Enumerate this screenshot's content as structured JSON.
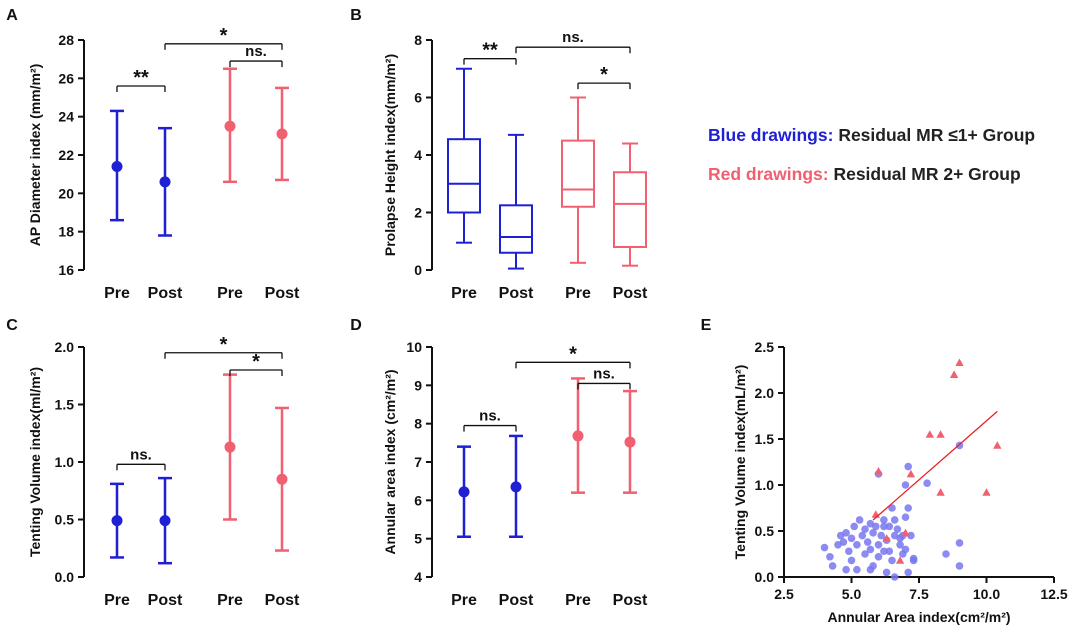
{
  "figure": {
    "colors": {
      "blue": "#1f1fd4",
      "red": "#f06070",
      "black": "#111111",
      "scatter_blue": "#7777ee"
    }
  },
  "legend": {
    "blue_label": "Blue drawings:",
    "blue_text": "Residual MR ≤1+ Group",
    "red_label": "Red drawings:",
    "red_text": "Residual MR 2+ Group"
  },
  "chart_data": [
    {
      "panel": "A",
      "type": "errorbar",
      "ylabel": "AP Diameter index (mm/m²)",
      "ylim": [
        16,
        28
      ],
      "yticks": [
        16,
        18,
        20,
        22,
        24,
        26,
        28
      ],
      "categories": [
        "Pre",
        "Post",
        "Pre",
        "Post"
      ],
      "groups": [
        "blue",
        "blue",
        "red",
        "red"
      ],
      "points": [
        {
          "mean": 21.4,
          "low": 18.6,
          "high": 24.3
        },
        {
          "mean": 20.6,
          "low": 17.8,
          "high": 23.4
        },
        {
          "mean": 23.5,
          "low": 20.6,
          "high": 26.5
        },
        {
          "mean": 23.1,
          "low": 20.7,
          "high": 25.5
        }
      ],
      "brackets": [
        {
          "from": 0,
          "to": 1,
          "label": "**",
          "y": 25.6
        },
        {
          "from": 1,
          "to": 3,
          "label": "*",
          "y": 27.8
        },
        {
          "from": 2,
          "to": 3,
          "label": "ns.",
          "y": 26.9
        }
      ]
    },
    {
      "panel": "B",
      "type": "box",
      "ylabel": "Prolapse Height index(mm/m²)",
      "ylim": [
        0,
        8
      ],
      "yticks": [
        0,
        2,
        4,
        6,
        8
      ],
      "categories": [
        "Pre",
        "Post",
        "Pre",
        "Post"
      ],
      "groups": [
        "blue",
        "blue",
        "red",
        "red"
      ],
      "boxes": [
        {
          "min": 0.95,
          "q1": 2.0,
          "median": 3.0,
          "q3": 4.55,
          "max": 7.0
        },
        {
          "min": 0.05,
          "q1": 0.6,
          "median": 1.15,
          "q3": 2.25,
          "max": 4.7
        },
        {
          "min": 0.25,
          "q1": 2.2,
          "median": 2.8,
          "q3": 4.5,
          "max": 6.0
        },
        {
          "min": 0.15,
          "q1": 0.8,
          "median": 2.3,
          "q3": 3.4,
          "max": 4.4
        }
      ],
      "brackets": [
        {
          "from": 0,
          "to": 1,
          "label": "**",
          "y": 7.35
        },
        {
          "from": 1,
          "to": 3,
          "label": "ns.",
          "y": 7.75
        },
        {
          "from": 2,
          "to": 3,
          "label": "*",
          "y": 6.5
        }
      ]
    },
    {
      "panel": "C",
      "type": "errorbar",
      "ylabel": "Tenting Volume index(ml/m²)",
      "ylim": [
        0,
        2.0
      ],
      "yticks": [
        0.0,
        0.5,
        1.0,
        1.5,
        2.0
      ],
      "tick_labels": [
        "0.0",
        "0.5",
        "1.0",
        "1.5",
        "2.0"
      ],
      "categories": [
        "Pre",
        "Post",
        "Pre",
        "Post"
      ],
      "groups": [
        "blue",
        "blue",
        "red",
        "red"
      ],
      "points": [
        {
          "mean": 0.49,
          "low": 0.17,
          "high": 0.81
        },
        {
          "mean": 0.49,
          "low": 0.12,
          "high": 0.86
        },
        {
          "mean": 1.13,
          "low": 0.5,
          "high": 1.76
        },
        {
          "mean": 0.85,
          "low": 0.23,
          "high": 1.47
        }
      ],
      "brackets": [
        {
          "from": 0,
          "to": 1,
          "label": "ns.",
          "y": 0.98
        },
        {
          "from": 1,
          "to": 3,
          "label": "*",
          "y": 1.95
        },
        {
          "from": 2,
          "to": 3,
          "label": "*",
          "y": 1.8
        }
      ]
    },
    {
      "panel": "D",
      "type": "errorbar",
      "ylabel": "Annular area index (cm²/m²)",
      "ylim": [
        4,
        10
      ],
      "yticks": [
        4,
        5,
        6,
        7,
        8,
        9,
        10
      ],
      "categories": [
        "Pre",
        "Post",
        "Pre",
        "Post"
      ],
      "groups": [
        "blue",
        "blue",
        "red",
        "red"
      ],
      "points": [
        {
          "mean": 6.22,
          "low": 5.05,
          "high": 7.4
        },
        {
          "mean": 6.35,
          "low": 5.05,
          "high": 7.68
        },
        {
          "mean": 7.68,
          "low": 6.2,
          "high": 9.18
        },
        {
          "mean": 7.52,
          "low": 6.2,
          "high": 8.85
        }
      ],
      "brackets": [
        {
          "from": 0,
          "to": 1,
          "label": "ns.",
          "y": 7.95
        },
        {
          "from": 1,
          "to": 3,
          "label": "*",
          "y": 9.6
        },
        {
          "from": 2,
          "to": 3,
          "label": "ns.",
          "y": 9.05
        }
      ]
    },
    {
      "panel": "E",
      "type": "scatter",
      "xlabel": "Annular Area index(cm²/m²)",
      "ylabel": "Tenting Volume index(mL/m²)",
      "xlim": [
        2.5,
        12.5
      ],
      "ylim": [
        0,
        2.5
      ],
      "xticks": [
        2.5,
        5.0,
        7.5,
        10.0,
        12.5
      ],
      "xtick_labels": [
        "2.5",
        "5.0",
        "7.5",
        "10.0",
        "12.5"
      ],
      "yticks": [
        0.0,
        0.5,
        1.0,
        1.5,
        2.0,
        2.5
      ],
      "ytick_labels": [
        "0.0",
        "0.5",
        "1.0",
        "1.5",
        "2.0",
        "2.5"
      ],
      "blue_points": [
        [
          4.0,
          0.32
        ],
        [
          4.2,
          0.22
        ],
        [
          4.3,
          0.12
        ],
        [
          4.5,
          0.35
        ],
        [
          4.6,
          0.45
        ],
        [
          4.7,
          0.38
        ],
        [
          4.8,
          0.48
        ],
        [
          4.9,
          0.28
        ],
        [
          5.0,
          0.18
        ],
        [
          5.0,
          0.42
        ],
        [
          5.1,
          0.55
        ],
        [
          5.2,
          0.35
        ],
        [
          5.2,
          0.08
        ],
        [
          5.3,
          0.62
        ],
        [
          5.4,
          0.45
        ],
        [
          5.5,
          0.52
        ],
        [
          5.5,
          0.25
        ],
        [
          5.6,
          0.38
        ],
        [
          5.7,
          0.3
        ],
        [
          5.7,
          0.58
        ],
        [
          5.8,
          0.48
        ],
        [
          5.8,
          0.12
        ],
        [
          5.9,
          0.55
        ],
        [
          6.0,
          0.35
        ],
        [
          6.0,
          0.22
        ],
        [
          6.1,
          0.45
        ],
        [
          6.2,
          0.62
        ],
        [
          6.2,
          0.28
        ],
        [
          6.3,
          0.05
        ],
        [
          6.3,
          0.4
        ],
        [
          6.4,
          0.55
        ],
        [
          6.4,
          0.28
        ],
        [
          6.5,
          0.75
        ],
        [
          6.5,
          0.18
        ],
        [
          6.6,
          0.45
        ],
        [
          6.6,
          0.62
        ],
        [
          6.7,
          0.52
        ],
        [
          6.8,
          0.35
        ],
        [
          6.9,
          0.25
        ],
        [
          6.9,
          0.45
        ],
        [
          7.0,
          0.65
        ],
        [
          7.0,
          0.3
        ],
        [
          7.1,
          0.05
        ],
        [
          7.1,
          0.75
        ],
        [
          7.2,
          0.45
        ],
        [
          7.3,
          0.2
        ],
        [
          7.0,
          1.0
        ],
        [
          7.1,
          1.2
        ],
        [
          7.8,
          1.02
        ],
        [
          8.5,
          0.25
        ],
        [
          9.0,
          1.43
        ],
        [
          9.0,
          0.37
        ],
        [
          9.0,
          0.12
        ],
        [
          6.0,
          1.12
        ],
        [
          6.6,
          0.0
        ],
        [
          7.3,
          0.18
        ],
        [
          4.8,
          0.08
        ],
        [
          5.7,
          0.08
        ],
        [
          6.2,
          0.55
        ],
        [
          6.8,
          0.42
        ]
      ],
      "red_points": [
        [
          5.9,
          0.68
        ],
        [
          6.0,
          1.15
        ],
        [
          6.3,
          0.42
        ],
        [
          6.8,
          0.18
        ],
        [
          7.0,
          0.48
        ],
        [
          7.2,
          1.12
        ],
        [
          7.9,
          1.55
        ],
        [
          8.3,
          1.55
        ],
        [
          8.3,
          0.92
        ],
        [
          8.8,
          2.2
        ],
        [
          9.0,
          2.33
        ],
        [
          10.0,
          0.92
        ],
        [
          10.4,
          1.43
        ]
      ],
      "fit_line": {
        "x1": 5.8,
        "y1": 0.62,
        "x2": 10.4,
        "y2": 1.8
      }
    }
  ]
}
